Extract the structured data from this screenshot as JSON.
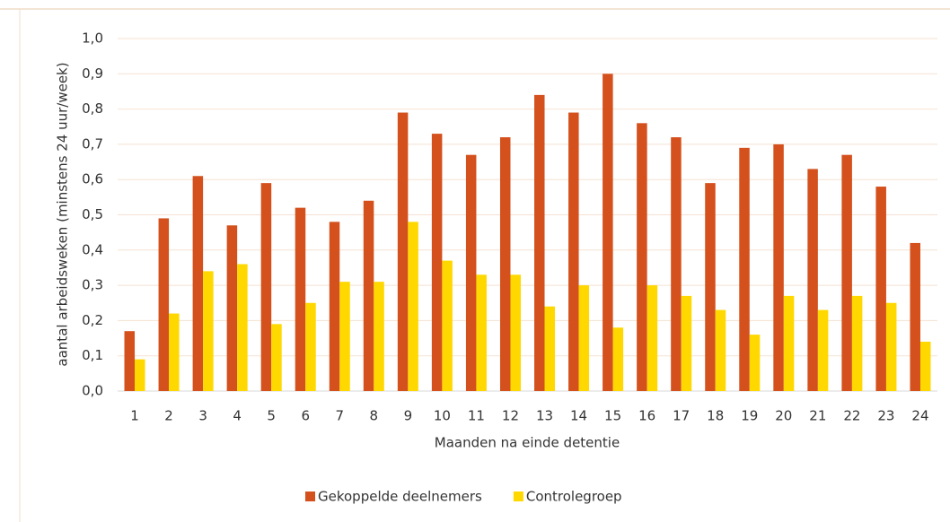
{
  "chart_data": {
    "type": "bar",
    "x_label": "Maanden na einde detentie",
    "y_label": "aantal arbeidsweken (minstens 24 uur/week)",
    "categories": [
      "1",
      "2",
      "3",
      "4",
      "5",
      "6",
      "7",
      "8",
      "9",
      "10",
      "11",
      "12",
      "13",
      "14",
      "15",
      "16",
      "17",
      "18",
      "19",
      "20",
      "21",
      "22",
      "23",
      "24"
    ],
    "series": [
      {
        "name": "Gekoppelde deelnemers",
        "color": "#d4501c",
        "values": [
          0.17,
          0.49,
          0.61,
          0.47,
          0.59,
          0.52,
          0.48,
          0.54,
          0.79,
          0.73,
          0.67,
          0.72,
          0.84,
          0.79,
          0.9,
          0.76,
          0.72,
          0.59,
          0.69,
          0.7,
          0.63,
          0.67,
          0.58,
          0.42
        ]
      },
      {
        "name": "Controlegroep",
        "color": "#ffd800",
        "values": [
          0.09,
          0.22,
          0.34,
          0.36,
          0.19,
          0.25,
          0.31,
          0.31,
          0.48,
          0.37,
          0.33,
          0.33,
          0.24,
          0.3,
          0.18,
          0.3,
          0.27,
          0.23,
          0.16,
          0.27,
          0.23,
          0.27,
          0.25,
          0.14
        ]
      }
    ],
    "ylim": [
      0,
      1
    ],
    "yticks": [
      {
        "value": 0,
        "label": "0,0"
      },
      {
        "value": 0.1,
        "label": "0,1"
      },
      {
        "value": 0.2,
        "label": "0,2"
      },
      {
        "value": 0.3,
        "label": "0,3"
      },
      {
        "value": 0.4,
        "label": "0,4"
      },
      {
        "value": 0.5,
        "label": "0,5"
      },
      {
        "value": 0.6,
        "label": "0,6"
      },
      {
        "value": 0.7,
        "label": "0,7"
      },
      {
        "value": 0.8,
        "label": "0,8"
      },
      {
        "value": 0.9,
        "label": "0,9"
      },
      {
        "value": 1,
        "label": "1,0"
      }
    ],
    "grid": true,
    "legend": "bottom"
  }
}
